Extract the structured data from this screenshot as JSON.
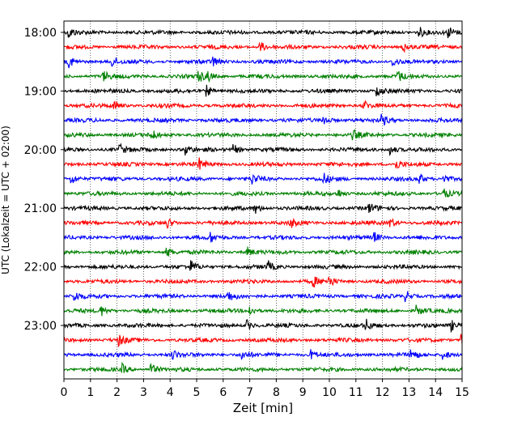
{
  "chart_data": {
    "type": "line",
    "title": "",
    "xlabel": "Zeit  [min]",
    "ylabel": "UTC (Lokalzeit = UTC + 02:00)",
    "xlim": [
      0,
      15
    ],
    "x_ticks": [
      "0",
      "1",
      "2",
      "3",
      "4",
      "5",
      "6",
      "7",
      "8",
      "9",
      "10",
      "11",
      "12",
      "13",
      "14",
      "15"
    ],
    "y_tick_labels": [
      "18:00",
      "19:00",
      "20:00",
      "21:00",
      "22:00",
      "23:00"
    ],
    "grid": "vertical dotted at each minute",
    "series_colors": [
      "#000000",
      "#ff0000",
      "#0000ff",
      "#008000"
    ],
    "series": [
      {
        "name": "18:00",
        "color": "#000000",
        "events": [
          0.2,
          13.4,
          14.5
        ]
      },
      {
        "name": "18:15",
        "color": "#ff0000",
        "events": [
          7.4,
          12.8
        ]
      },
      {
        "name": "18:30",
        "color": "#0000ff",
        "events": [
          0.2,
          1.8,
          5.6,
          12.4
        ]
      },
      {
        "name": "18:45",
        "color": "#008000",
        "events": [
          1.5,
          5.1,
          5.4,
          12.6
        ]
      },
      {
        "name": "19:00",
        "color": "#000000",
        "events": [
          5.4,
          11.8
        ]
      },
      {
        "name": "19:15",
        "color": "#ff0000",
        "events": [
          1.9,
          11.3
        ]
      },
      {
        "name": "19:30",
        "color": "#0000ff",
        "events": [
          9.8,
          12.0
        ]
      },
      {
        "name": "19:45",
        "color": "#008000",
        "events": [
          3.3,
          10.9
        ]
      },
      {
        "name": "20:00",
        "color": "#000000",
        "events": [
          2.1,
          4.6,
          6.4,
          12.3
        ]
      },
      {
        "name": "20:15",
        "color": "#ff0000",
        "events": [
          5.1,
          12.5
        ]
      },
      {
        "name": "20:30",
        "color": "#0000ff",
        "events": [
          0.3,
          7.1,
          9.8,
          13.4,
          14.3
        ]
      },
      {
        "name": "20:45",
        "color": "#008000",
        "events": [
          10.3,
          14.3
        ]
      },
      {
        "name": "21:00",
        "color": "#000000",
        "events": [
          7.2,
          11.5
        ]
      },
      {
        "name": "21:15",
        "color": "#ff0000",
        "events": [
          3.9,
          8.5,
          12.3
        ]
      },
      {
        "name": "21:30",
        "color": "#0000ff",
        "events": [
          5.5,
          11.7
        ]
      },
      {
        "name": "21:45",
        "color": "#008000",
        "events": [
          3.9,
          6.9
        ]
      },
      {
        "name": "22:00",
        "color": "#000000",
        "events": [
          4.8,
          7.7
        ]
      },
      {
        "name": "22:15",
        "color": "#ff0000",
        "events": [
          9.4,
          10.0
        ]
      },
      {
        "name": "22:30",
        "color": "#0000ff",
        "events": [
          0.4,
          6.2,
          12.9
        ]
      },
      {
        "name": "22:45",
        "color": "#008000",
        "events": [
          1.4,
          7.0,
          13.3
        ]
      },
      {
        "name": "23:00",
        "color": "#000000",
        "events": [
          6.9,
          11.4,
          14.6
        ]
      },
      {
        "name": "23:15",
        "color": "#ff0000",
        "events": [
          2.1,
          15.0
        ]
      },
      {
        "name": "23:30",
        "color": "#0000ff",
        "events": [
          4.1,
          6.7,
          9.3,
          13.1,
          14.3
        ]
      },
      {
        "name": "23:45",
        "color": "#008000",
        "events": [
          2.2,
          3.3
        ]
      }
    ]
  }
}
